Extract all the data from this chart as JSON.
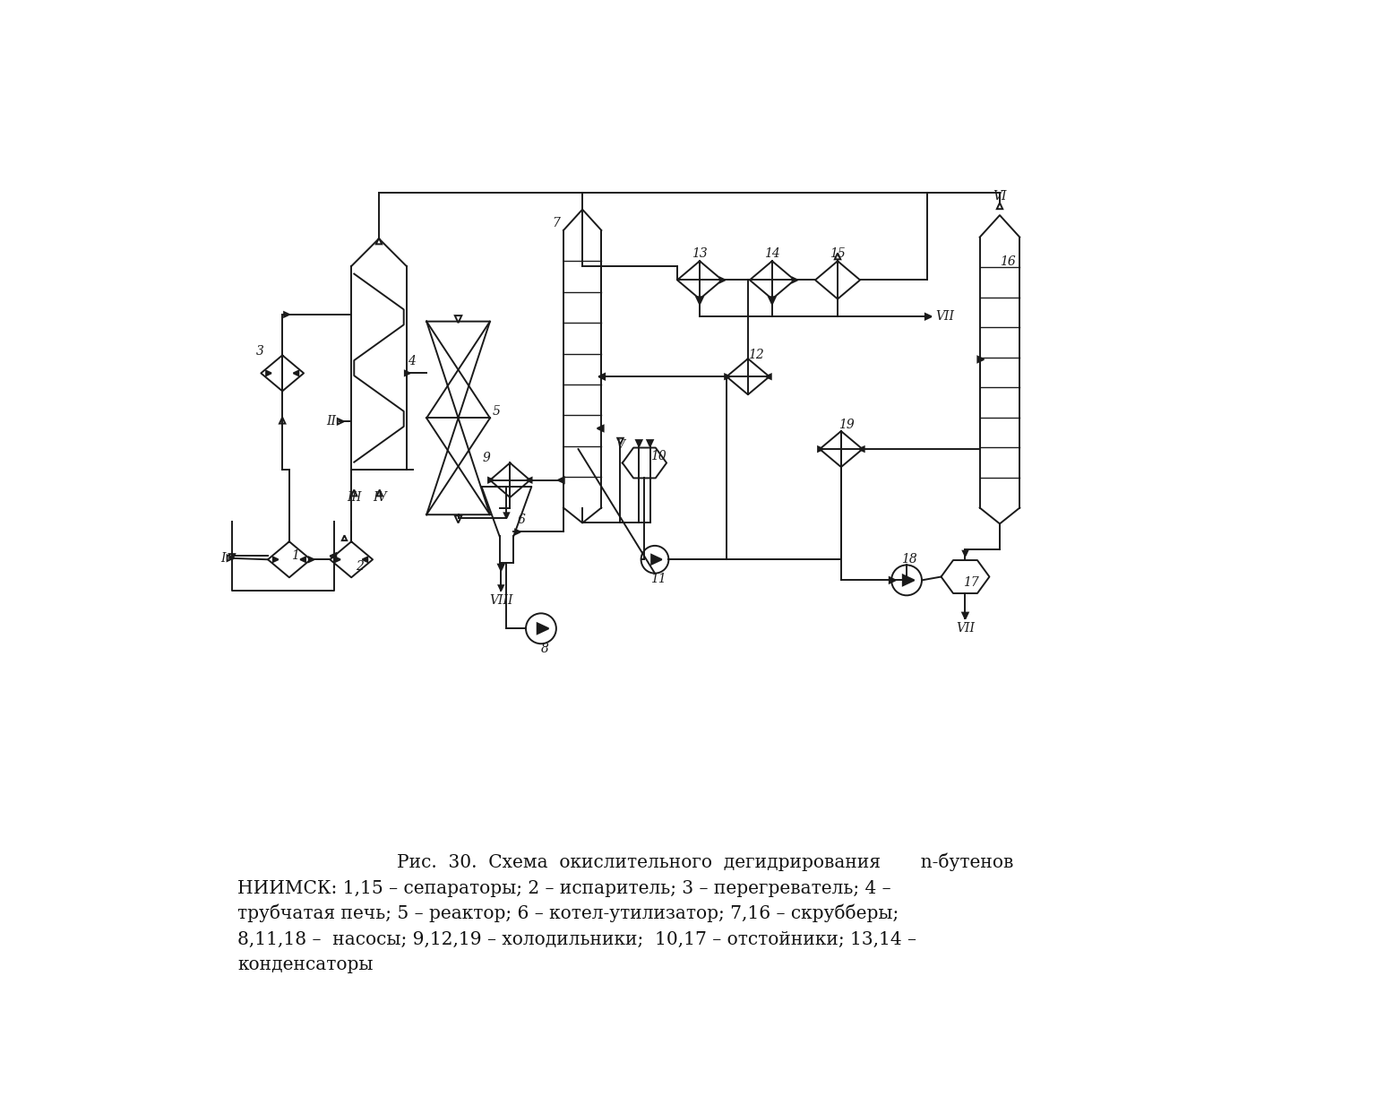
{
  "caption_line1": "Рис.  30.  Схема  окислительного  дегидрирования       n-бутенов",
  "caption_line2": "НИИМСК: 1,15 – сепараторы; 2 – испаритель; 3 – перегреватель; 4 –",
  "caption_line3": "трубчатая печь; 5 – реактор; 6 – котел-утилизатор; 7,16 – скрубберы;",
  "caption_line4": "8,11,18 –  насосы; 9,12,19 – холодильники;  10,17 – отстойники; 13,14 –",
  "caption_line5": "конденсаторы",
  "bg_color": "#ffffff",
  "line_color": "#1a1a1a"
}
